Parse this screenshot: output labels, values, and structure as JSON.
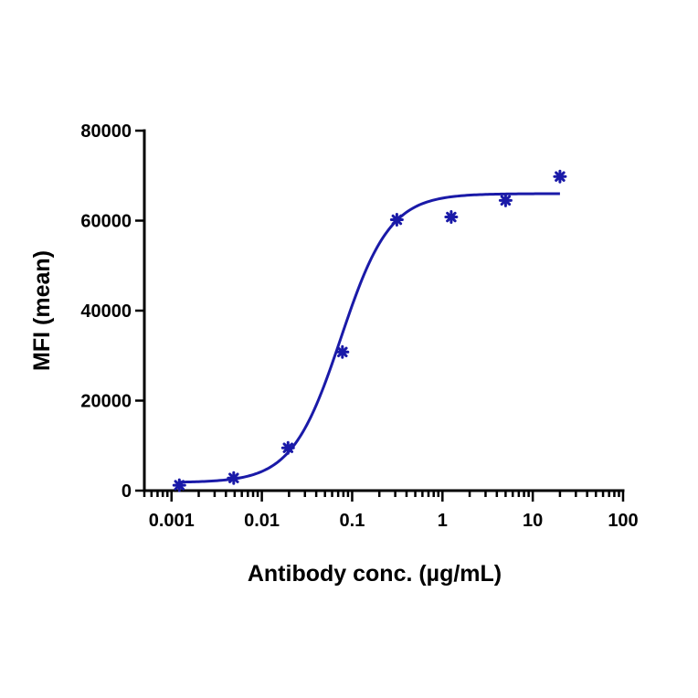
{
  "chart_data": {
    "type": "scatter",
    "xlabel": "Antibody conc. (µg/mL)",
    "ylabel": "MFI (mean)",
    "x_scale": "log",
    "xlim": [
      0.0005,
      100
    ],
    "ylim": [
      0,
      80000
    ],
    "x_ticks": [
      0.001,
      0.01,
      0.1,
      1,
      10,
      100
    ],
    "x_tick_labels": [
      "0.001",
      "0.01",
      "0.1",
      "1",
      "10",
      "100"
    ],
    "y_ticks": [
      0,
      20000,
      40000,
      60000,
      80000
    ],
    "y_tick_labels": [
      "0",
      "20000",
      "40000",
      "60000",
      "80000"
    ],
    "grid": false,
    "color": "#1a1aa8",
    "series": [
      {
        "x": [
          0.00122,
          0.00488,
          0.0195,
          0.078,
          0.3125,
          1.25,
          5,
          20
        ],
        "y": [
          1200,
          2800,
          9500,
          30800,
          60200,
          60800,
          64500,
          69800
        ]
      }
    ],
    "fit": {
      "model": "4PL",
      "bottom": 1800,
      "top": 66000,
      "ec50": 0.075,
      "hill": 1.6,
      "x_range": [
        0.00122,
        20
      ]
    }
  }
}
